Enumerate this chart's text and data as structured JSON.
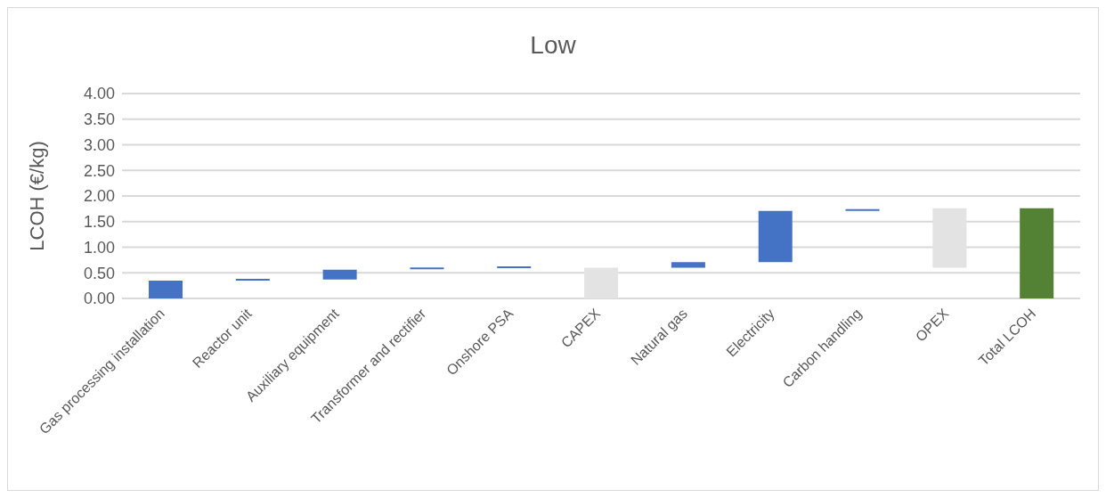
{
  "chart_data": {
    "type": "bar",
    "title": "Low",
    "ylabel": "LCOH (€/kg)",
    "categories": [
      "Gas processing installation",
      "Reactor unit",
      "Auxiliary equipment",
      "Transformer and rectifier",
      "Onshore PSA",
      "CAPEX",
      "Natural gas",
      "Electricity",
      "Carbon handling",
      "OPEX",
      "Total LCOH"
    ],
    "values": [
      0.35,
      0.02,
      0.19,
      0.01,
      0.01,
      0.6,
      0.11,
      1.0,
      0.03,
      1.16,
      1.76
    ],
    "base": [
      0,
      0.35,
      0.37,
      0.57,
      0.59,
      0,
      0.6,
      0.71,
      1.71,
      0.6,
      0
    ],
    "colors": [
      "#4472c4",
      "#4472c4",
      "#4472c4",
      "#4472c4",
      "#4472c4",
      "#e3e3e3",
      "#4472c4",
      "#4472c4",
      "#4472c4",
      "#e3e3e3",
      "#548235"
    ],
    "ylim": [
      0,
      4
    ],
    "yticks": [
      {
        "value": 0,
        "label": "0.00"
      },
      {
        "value": 0.5,
        "label": "0.50"
      },
      {
        "value": 1,
        "label": "1.00"
      },
      {
        "value": 1.5,
        "label": "1.50"
      },
      {
        "value": 2,
        "label": "2.00"
      },
      {
        "value": 2.5,
        "label": "2.50"
      },
      {
        "value": 3,
        "label": "3.00"
      },
      {
        "value": 3.5,
        "label": "3.50"
      },
      {
        "value": 4,
        "label": "4.00"
      }
    ],
    "grid": "y"
  }
}
